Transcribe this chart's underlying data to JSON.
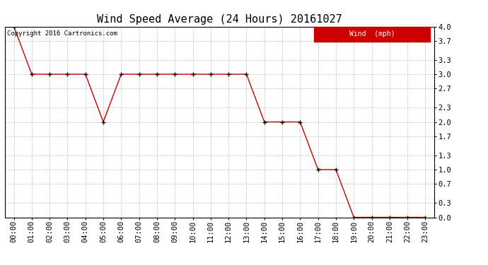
{
  "title": "Wind Speed Average (24 Hours) 20161027",
  "copyright_text": "Copyright 2016 Cartronics.com",
  "legend_label": "Wind  (mph)",
  "legend_bg": "#cc0000",
  "legend_fg": "#ffffff",
  "x_labels": [
    "00:00",
    "01:00",
    "02:00",
    "03:00",
    "04:00",
    "05:00",
    "06:00",
    "07:00",
    "08:00",
    "09:00",
    "10:00",
    "11:00",
    "12:00",
    "13:00",
    "14:00",
    "15:00",
    "16:00",
    "17:00",
    "18:00",
    "19:00",
    "20:00",
    "21:00",
    "22:00",
    "23:00"
  ],
  "y_values": [
    4.0,
    3.0,
    3.0,
    3.0,
    3.0,
    2.0,
    3.0,
    3.0,
    3.0,
    3.0,
    3.0,
    3.0,
    3.0,
    3.0,
    2.0,
    2.0,
    2.0,
    1.0,
    1.0,
    0.0,
    0.0,
    0.0,
    0.0,
    0.0
  ],
  "ylim": [
    0.0,
    4.0
  ],
  "yticks": [
    0.0,
    0.3,
    0.7,
    1.0,
    1.3,
    1.7,
    2.0,
    2.3,
    2.7,
    3.0,
    3.3,
    3.7,
    4.0
  ],
  "line_color": "#cc0000",
  "marker_color": "#000000",
  "bg_color": "#ffffff",
  "plot_bg_color": "#ffffff",
  "grid_color": "#c0c0c0",
  "title_fontsize": 11,
  "tick_fontsize": 7.5,
  "copyright_fontsize": 6.5
}
